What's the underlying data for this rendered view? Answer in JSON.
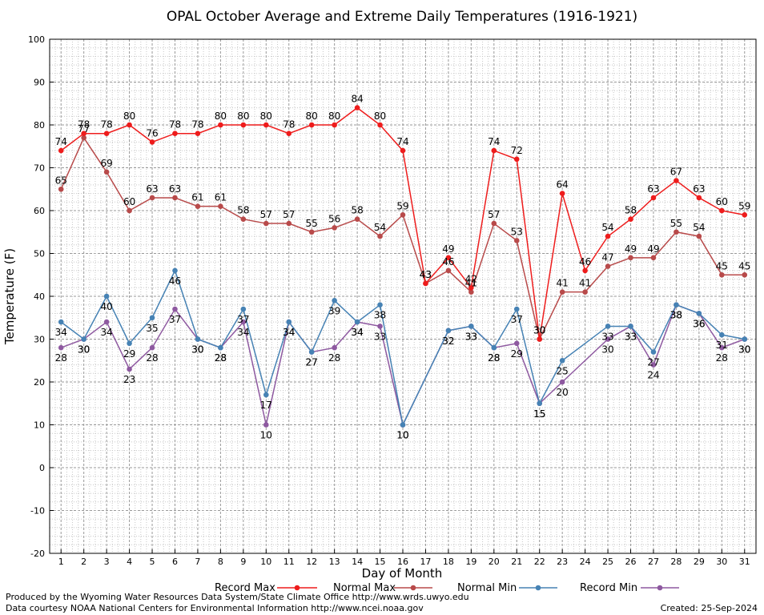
{
  "chart_data": {
    "type": "line",
    "title": "OPAL October Average and Extreme Daily Temperatures (1916-1921)",
    "xlabel": "Day of Month",
    "ylabel": "Temperature (F)",
    "ylim": [
      -20,
      100
    ],
    "yticks": [
      -20,
      -10,
      0,
      10,
      20,
      30,
      40,
      50,
      60,
      70,
      80,
      90,
      100
    ],
    "x": [
      1,
      2,
      3,
      4,
      5,
      6,
      7,
      8,
      9,
      10,
      11,
      12,
      13,
      14,
      15,
      16,
      17,
      18,
      19,
      20,
      21,
      22,
      23,
      24,
      25,
      26,
      27,
      28,
      29,
      30,
      31
    ],
    "grid": true,
    "legend_position": "bottom",
    "series": [
      {
        "name": "Record Max",
        "color": "#ee1c1c",
        "values": [
          74,
          78,
          78,
          80,
          76,
          78,
          78,
          80,
          80,
          80,
          78,
          80,
          80,
          84,
          80,
          74,
          43,
          49,
          42,
          74,
          72,
          30,
          64,
          46,
          54,
          58,
          63,
          67,
          63,
          60,
          59
        ]
      },
      {
        "name": "Normal Max",
        "color": "#b84a4a",
        "values": [
          65,
          77,
          69,
          60,
          63,
          63,
          61,
          61,
          58,
          57,
          57,
          55,
          56,
          58,
          54,
          59,
          43,
          46,
          41,
          57,
          53,
          30,
          41,
          41,
          47,
          49,
          49,
          55,
          54,
          45,
          45
        ]
      },
      {
        "name": "Normal Min",
        "color": "#4682b4",
        "values": [
          34,
          30,
          40,
          29,
          35,
          46,
          30,
          28,
          37,
          17,
          34,
          27,
          39,
          34,
          38,
          10,
          null,
          32,
          33,
          28,
          37,
          15,
          25,
          null,
          33,
          33,
          27,
          38,
          36,
          31,
          30
        ]
      },
      {
        "name": "Record Min",
        "color": "#8e59a0",
        "values": [
          28,
          30,
          34,
          23,
          28,
          37,
          30,
          28,
          34,
          10,
          34,
          27,
          28,
          34,
          33,
          10,
          null,
          32,
          33,
          28,
          29,
          15,
          20,
          null,
          30,
          33,
          24,
          38,
          36,
          28,
          30
        ]
      }
    ]
  },
  "footer": {
    "produced_by": "Produced by the Wyoming Water Resources Data System/State Climate Office http://www.wrds.uwyo.edu",
    "courtesy": "Data courtesy NOAA National Centers for Environmental Information http://www.ncei.noaa.gov",
    "created": "Created:  25-Sep-2024"
  }
}
